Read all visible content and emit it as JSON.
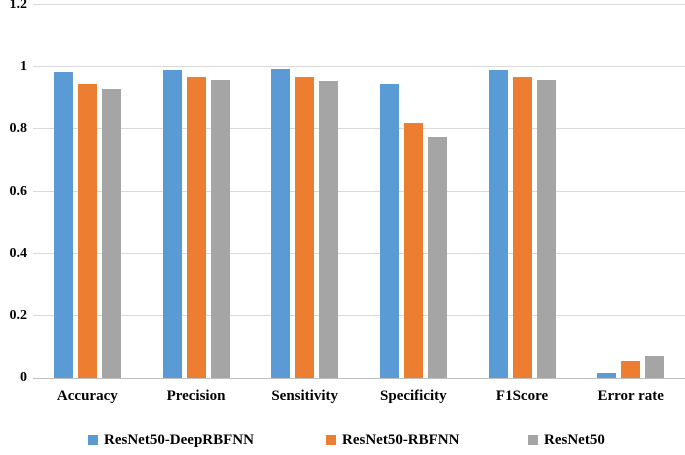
{
  "chart_data": {
    "type": "bar",
    "title": "",
    "xlabel": "",
    "ylabel": "",
    "categories": [
      "Accuracy",
      "Precision",
      "Sensitivity",
      "Specificity",
      "F1Score",
      "Error rate"
    ],
    "series": [
      {
        "name": "ResNet50-DeepRBFNN",
        "color": "#5B9BD5",
        "values": [
          0.985,
          0.99,
          0.993,
          0.945,
          0.992,
          0.015
        ]
      },
      {
        "name": "ResNet50-RBFNN",
        "color": "#ED7D31",
        "values": [
          0.945,
          0.97,
          0.967,
          0.82,
          0.967,
          0.055
        ]
      },
      {
        "name": "ResNet50",
        "color": "#A5A5A5",
        "values": [
          0.93,
          0.96,
          0.957,
          0.775,
          0.958,
          0.07
        ]
      }
    ],
    "ylim": [
      0,
      1.2
    ],
    "ytick_step": 0.2,
    "yticks": [
      "0",
      "0.2",
      "0.4",
      "0.6",
      "0.8",
      "1",
      "1.2"
    ],
    "grid": true,
    "legend_position": "bottom"
  },
  "style": {
    "gridline_color": "#D9D9D9",
    "axis_color": "#BFBFBF",
    "text_color": "#000000"
  },
  "layout": {
    "legend_item_lefts": [
      88,
      326,
      528
    ]
  }
}
